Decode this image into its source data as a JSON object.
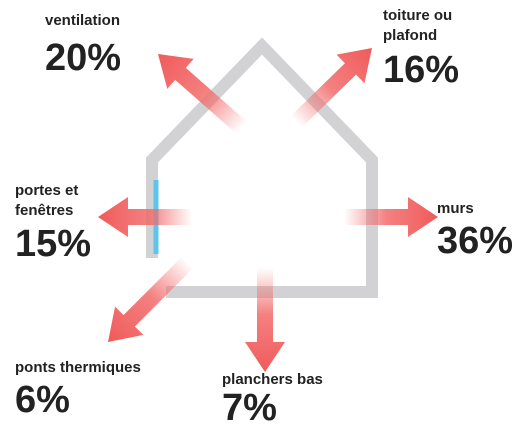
{
  "title": null,
  "items": [
    {
      "label": [
        "ventilation"
      ],
      "value": "20%"
    },
    {
      "label": [
        "toiture ou",
        "plafond"
      ],
      "value": "16%"
    },
    {
      "label": [
        "portes et",
        "fenêtres"
      ],
      "value": "15%"
    },
    {
      "label": [
        "murs"
      ],
      "value": "36%"
    },
    {
      "label": [
        "ponts thermiques"
      ],
      "value": "6%"
    },
    {
      "label": [
        "planchers bas"
      ],
      "value": "7%"
    }
  ]
}
